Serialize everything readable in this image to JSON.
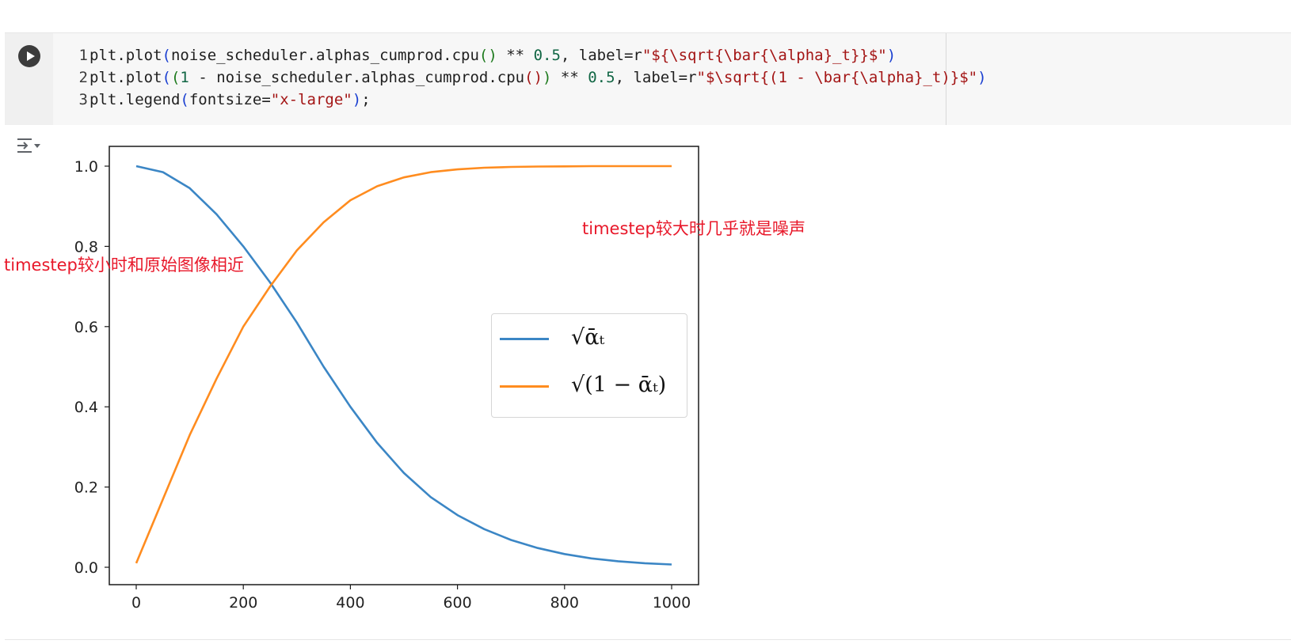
{
  "notebook": {
    "code_lines": [
      {
        "number": "1",
        "tokens": [
          {
            "t": "plt.plot",
            "c": "tok-op"
          },
          {
            "t": "(",
            "c": "tok-paren"
          },
          {
            "t": "noise_scheduler.alphas_cumprod.cpu",
            "c": "tok-op"
          },
          {
            "t": "()",
            "c": "tok-paren2"
          },
          {
            "t": " ** ",
            "c": "tok-op"
          },
          {
            "t": "0.5",
            "c": "tok-num"
          },
          {
            "t": ", label=r",
            "c": "tok-op"
          },
          {
            "t": "\"${\\sqrt{\\bar{\\alpha}_t}}$\"",
            "c": "tok-str"
          },
          {
            "t": ")",
            "c": "tok-paren"
          }
        ]
      },
      {
        "number": "2",
        "tokens": [
          {
            "t": "plt.plot",
            "c": "tok-op"
          },
          {
            "t": "(",
            "c": "tok-paren"
          },
          {
            "t": "(",
            "c": "tok-paren2"
          },
          {
            "t": "1",
            "c": "tok-num"
          },
          {
            "t": " - noise_scheduler.alphas_cumprod.cpu",
            "c": "tok-op"
          },
          {
            "t": "()",
            "c": "tok-str"
          },
          {
            "t": ")",
            "c": "tok-paren2"
          },
          {
            "t": " ** ",
            "c": "tok-op"
          },
          {
            "t": "0.5",
            "c": "tok-num"
          },
          {
            "t": ", label=r",
            "c": "tok-op"
          },
          {
            "t": "\"$\\sqrt{(1 - \\bar{\\alpha}_t)}$\"",
            "c": "tok-str"
          },
          {
            "t": ")",
            "c": "tok-paren"
          }
        ]
      },
      {
        "number": "3",
        "tokens": [
          {
            "t": "plt.legend",
            "c": "tok-op"
          },
          {
            "t": "(",
            "c": "tok-paren"
          },
          {
            "t": "fontsize=",
            "c": "tok-op"
          },
          {
            "t": "\"x-large\"",
            "c": "tok-str"
          },
          {
            "t": ")",
            "c": "tok-paren"
          },
          {
            "t": ";",
            "c": "tok-op"
          }
        ]
      }
    ],
    "icons": {
      "run": "play-icon",
      "output_toggle": "output-collapse-icon"
    }
  },
  "annotations": {
    "small_timestep": "timestep较小时和原始图像相近",
    "large_timestep": "timestep较大时几乎就是噪声"
  },
  "colors": {
    "series_blue": "#3b86c5",
    "series_orange": "#ff8c1f",
    "annotation_red": "#e8182a"
  },
  "chart_data": {
    "type": "line",
    "title": "",
    "xlabel": "",
    "ylabel": "",
    "xlim": [
      0,
      1000
    ],
    "ylim": [
      0.0,
      1.0
    ],
    "xticks": [
      "0",
      "200",
      "400",
      "600",
      "800",
      "1000"
    ],
    "yticks": [
      "0.0",
      "0.2",
      "0.4",
      "0.6",
      "0.8",
      "1.0"
    ],
    "grid": false,
    "legend_placement": "center-right",
    "x": [
      0,
      50,
      100,
      150,
      200,
      250,
      300,
      350,
      400,
      450,
      500,
      550,
      600,
      650,
      700,
      750,
      800,
      850,
      900,
      950,
      1000
    ],
    "series": [
      {
        "name": "√ᾱₜ",
        "color": "#3b86c5",
        "values": [
          1.0,
          0.985,
          0.945,
          0.88,
          0.8,
          0.71,
          0.61,
          0.5,
          0.4,
          0.31,
          0.235,
          0.175,
          0.13,
          0.095,
          0.068,
          0.048,
          0.033,
          0.022,
          0.015,
          0.01,
          0.007
        ]
      },
      {
        "name": "√(1 − ᾱₜ)",
        "color": "#ff8c1f",
        "values": [
          0.01,
          0.17,
          0.33,
          0.47,
          0.6,
          0.7,
          0.79,
          0.86,
          0.915,
          0.95,
          0.972,
          0.985,
          0.992,
          0.996,
          0.998,
          0.999,
          0.9995,
          1.0,
          1.0,
          1.0,
          1.0
        ]
      }
    ]
  }
}
